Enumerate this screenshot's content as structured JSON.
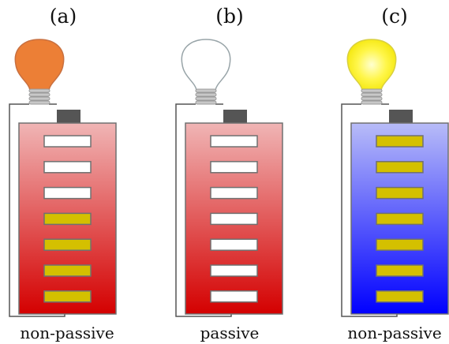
{
  "panels": [
    {
      "letter": "(a)",
      "caption": "non-passive",
      "bulb_state": "dim-orange",
      "bulb_color": "#ec7f36",
      "battery_theme": "red",
      "battery_gradient": [
        "#f0b5b5",
        "#d40000"
      ],
      "cells": [
        "empty",
        "empty",
        "empty",
        "charged",
        "charged",
        "charged",
        "charged"
      ]
    },
    {
      "letter": "(b)",
      "caption": "passive",
      "bulb_state": "off",
      "bulb_color": "#ffffff",
      "battery_theme": "red",
      "battery_gradient": [
        "#f0b5b5",
        "#d40000"
      ],
      "cells": [
        "empty",
        "empty",
        "empty",
        "empty",
        "empty",
        "empty",
        "empty"
      ]
    },
    {
      "letter": "(c)",
      "caption": "non-passive",
      "bulb_state": "bright-yellow",
      "bulb_color": "#fff64a",
      "battery_theme": "blue",
      "battery_gradient": [
        "#b8bcf8",
        "#0000ff"
      ],
      "cells": [
        "charged",
        "charged",
        "charged",
        "charged",
        "charged",
        "charged",
        "charged"
      ]
    }
  ],
  "colors": {
    "charged_cell": "#d4c000",
    "empty_cell": "#ffffff",
    "terminal": "#555555",
    "outline": "#707070",
    "wire": "#555555",
    "bulb_base": "#9a9a9a"
  }
}
